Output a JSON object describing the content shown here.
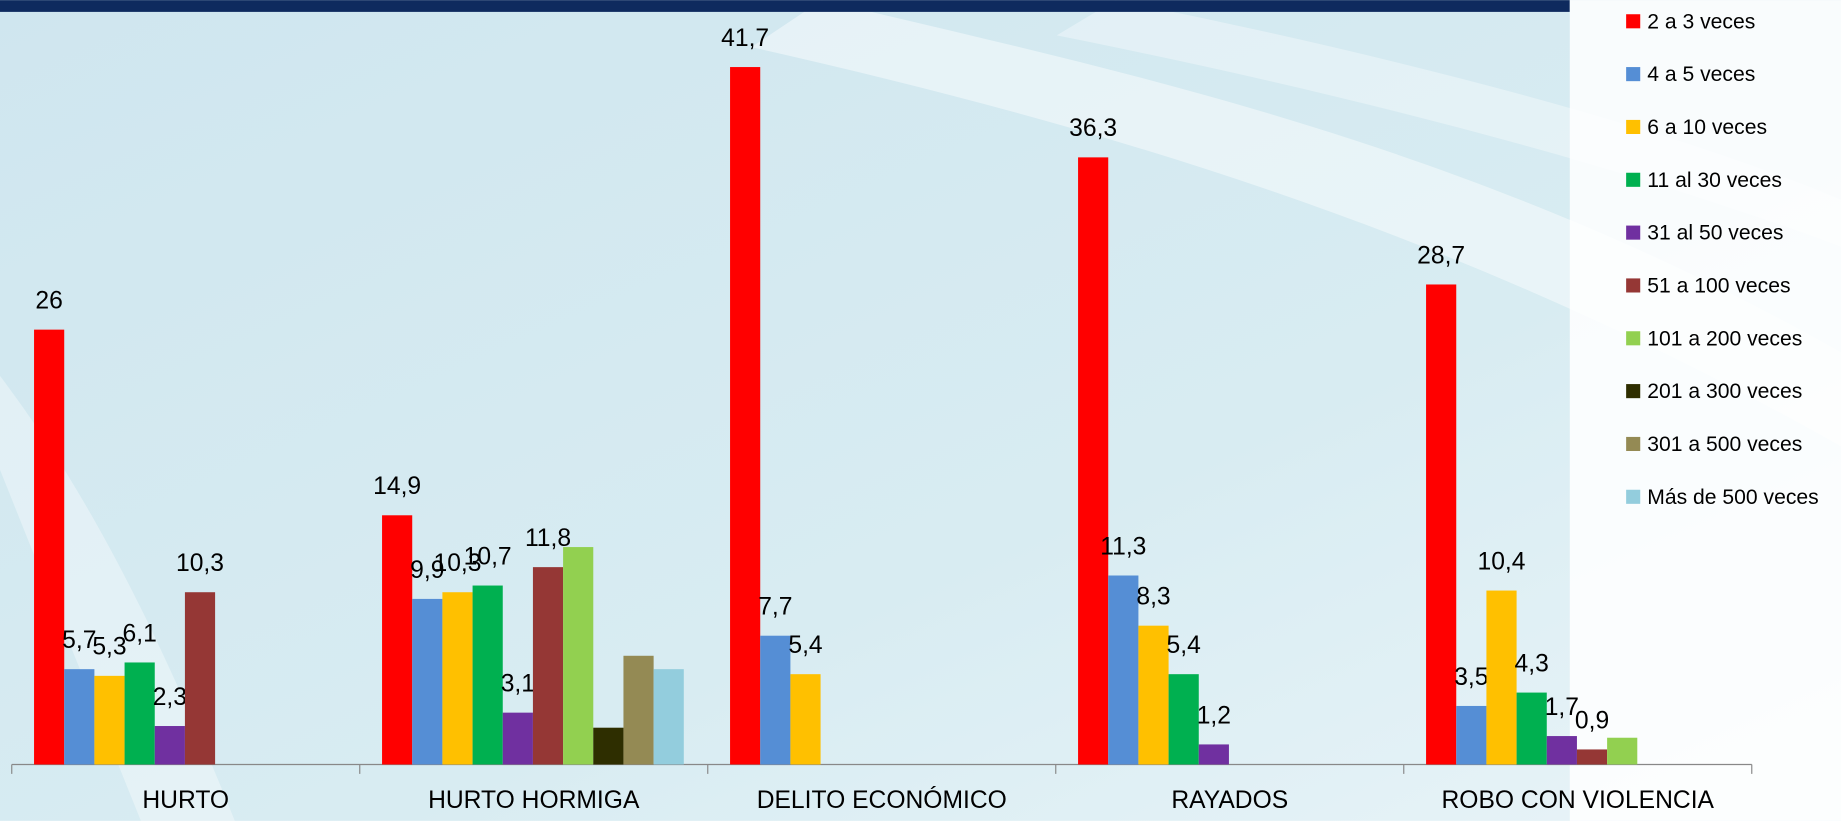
{
  "chart_data": {
    "type": "bar",
    "categories": [
      "HURTO",
      "HURTO HORMIGA",
      "DELITO ECONÓMICO",
      "RAYADOS",
      "ROBO CON VIOLENCIA"
    ],
    "ylim": [
      0,
      45.7
    ],
    "legend": "right",
    "series": [
      {
        "name": "2 a 3 veces",
        "color": "#ff0000",
        "values": [
          26,
          14.9,
          41.7,
          36.3,
          28.7
        ],
        "value_labels": [
          "26",
          "14,9",
          "41,7",
          "36,3",
          "28,7"
        ]
      },
      {
        "name": "4 a 5 veces",
        "color": "#558ed5",
        "values": [
          5.7,
          9.9,
          7.7,
          11.3,
          3.5
        ],
        "value_labels": [
          "5,7",
          "9,9",
          "7,7",
          "11,3",
          "3,5"
        ]
      },
      {
        "name": "6 a 10 veces",
        "color": "#ffc000",
        "values": [
          5.3,
          10.3,
          5.4,
          8.3,
          10.4
        ],
        "value_labels": [
          "5,3",
          "10,3",
          "5,4",
          "8,3",
          "10,4"
        ]
      },
      {
        "name": "11 al 30 veces",
        "color": "#00b050",
        "values": [
          6.1,
          10.7,
          null,
          5.4,
          4.3
        ],
        "value_labels": [
          "6,1",
          "10,7",
          null,
          "5,4",
          "4,3"
        ]
      },
      {
        "name": "31 al 50 veces",
        "color": "#7030a0",
        "values": [
          2.3,
          3.1,
          null,
          1.2,
          1.7
        ],
        "value_labels": [
          "2,3",
          "3,1",
          null,
          "1,2",
          "1,7"
        ]
      },
      {
        "name": "51 a 100 veces",
        "color": "#953735",
        "values": [
          10.3,
          11.8,
          null,
          null,
          0.9
        ],
        "value_labels": [
          "10,3",
          "11,8",
          null,
          null,
          "0,9"
        ]
      },
      {
        "name": "101 a 200 veces",
        "color": "#92d050",
        "values": [
          null,
          13.0,
          null,
          null,
          1.6
        ]
      },
      {
        "name": "201 a 300 veces",
        "color": "#2e2e00",
        "values": [
          null,
          2.2,
          null,
          null,
          null
        ]
      },
      {
        "name": "301 a 500 veces",
        "color": "#948a54",
        "values": [
          null,
          6.5,
          null,
          null,
          null
        ]
      },
      {
        "name": "Más de 500 veces",
        "color": "#93cddd",
        "values": [
          null,
          5.7,
          null,
          null,
          null
        ]
      }
    ]
  }
}
